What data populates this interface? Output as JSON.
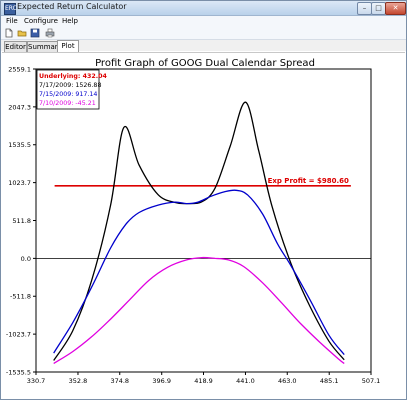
{
  "window": {
    "title": "Expected Return Calculator",
    "icon_text": "ERC",
    "controls": {
      "minimize": "–",
      "maximize": "□",
      "close": "✕"
    }
  },
  "menu": {
    "items": [
      "File",
      "Configure",
      "Help"
    ]
  },
  "toolbar": {
    "icons": [
      "new-file-icon",
      "open-folder-icon",
      "save-disk-icon",
      "printer-icon"
    ]
  },
  "tabs": {
    "items": [
      "Editor",
      "Summary",
      "Plot"
    ],
    "active": "Plot"
  },
  "colors": {
    "underlying": "#dd0000",
    "series_2009_07_17": "#000000",
    "series_2009_07_15": "#0000cc",
    "series_2009_07_10": "#e000e0",
    "exp_profit_line": "#dd0000",
    "zero_line": "#000000"
  },
  "chart_data": {
    "type": "line",
    "title": "Profit Graph of GOOG Dual Calendar Spread",
    "xlabel": "",
    "ylabel": "",
    "xlim": [
      330.7,
      507.1
    ],
    "ylim": [
      -1535.5,
      2559.1
    ],
    "x_ticks": [
      "330.7",
      "352.8",
      "374.8",
      "396.9",
      "418.9",
      "441.0",
      "463.0",
      "485.1",
      "507.1"
    ],
    "y_ticks": [
      "2559.1",
      "2047.3",
      "1535.5",
      "1023.7",
      "511.8",
      "0.0",
      "-511.8",
      "-1023.7",
      "-1535.5"
    ],
    "grid": false,
    "legend_position": "top-left",
    "legend": [
      {
        "text": "Underlying: 432.04",
        "color": "#dd0000"
      },
      {
        "text": "7/17/2009: 1526.88",
        "color": "#000000"
      },
      {
        "text": "7/15/2009: 917.14",
        "color": "#0000cc"
      },
      {
        "text": "7/10/2009: -45.21",
        "color": "#e000e0"
      }
    ],
    "hline": {
      "value": 980.6,
      "x_range": [
        340.5,
        496.5
      ],
      "label": "Exp Profit = $980.60"
    },
    "series": [
      {
        "color": "#000000",
        "x": [
          340,
          350,
          360,
          370,
          377,
          385,
          395,
          404,
          410,
          418,
          425,
          433,
          441,
          448,
          455,
          465,
          475,
          485,
          493
        ],
        "y": [
          -1380,
          -980,
          -300,
          720,
          1770,
          1260,
          860,
          755,
          740,
          765,
          950,
          1520,
          2110,
          1450,
          700,
          -70,
          -650,
          -1120,
          -1370
        ]
      },
      {
        "color": "#0000cc",
        "x": [
          340,
          350,
          360,
          370,
          378,
          385,
          395,
          404,
          410,
          416,
          423,
          430,
          436,
          442,
          450,
          458,
          465,
          475,
          485,
          493
        ],
        "y": [
          -1280,
          -870,
          -390,
          140,
          460,
          620,
          720,
          760,
          740,
          760,
          840,
          900,
          920,
          860,
          600,
          190,
          -100,
          -560,
          -1040,
          -1300
        ]
      },
      {
        "color": "#e000e0",
        "x": [
          340,
          350,
          360,
          370,
          380,
          390,
          400,
          410,
          418,
          425,
          432,
          440,
          450,
          460,
          470,
          480,
          490,
          493
        ],
        "y": [
          -1420,
          -1260,
          -1060,
          -820,
          -560,
          -300,
          -120,
          -20,
          10,
          0,
          -20,
          -110,
          -330,
          -600,
          -880,
          -1130,
          -1360,
          -1420
        ]
      }
    ]
  }
}
